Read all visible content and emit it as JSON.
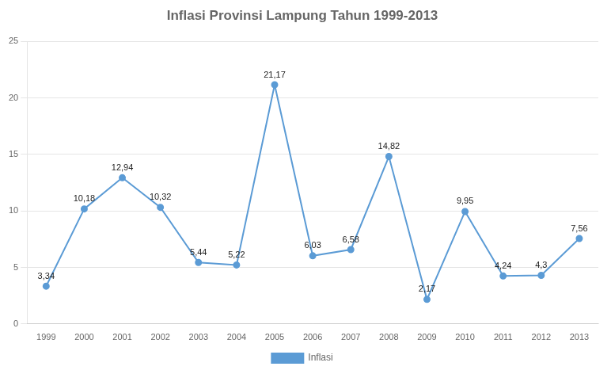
{
  "chart_data": {
    "type": "line",
    "title": "Inflasi Provinsi Lampung Tahun 1999-2013",
    "x": [
      1999,
      2000,
      2001,
      2002,
      2003,
      2004,
      2005,
      2006,
      2007,
      2008,
      2009,
      2010,
      2011,
      2012,
      2013
    ],
    "series": [
      {
        "name": "Inflasi",
        "color": "#5B9BD5",
        "marker": "circle",
        "line_style": "solid",
        "values": [
          3.34,
          10.18,
          12.94,
          10.32,
          5.44,
          5.22,
          21.17,
          6.03,
          6.58,
          14.82,
          2.17,
          9.95,
          4.24,
          4.3,
          7.56
        ],
        "value_labels": [
          "3,34",
          "10,18",
          "12,94",
          "10,32",
          "5,44",
          "5,22",
          "21,17",
          "6,03",
          "6,58",
          "14,82",
          "2,17",
          "9,95",
          "4,24",
          "4,3",
          "7,56"
        ]
      }
    ],
    "xlim": [
      1998.5,
      2013.5
    ],
    "xticks": [
      1999,
      2000,
      2001,
      2002,
      2003,
      2004,
      2005,
      2006,
      2007,
      2008,
      2009,
      2010,
      2011,
      2012,
      2013
    ],
    "ylim": [
      0,
      25
    ],
    "yticks": [
      0,
      5,
      10,
      15,
      20,
      25
    ],
    "grid": true,
    "legend": "bottom",
    "data_labels": true
  }
}
